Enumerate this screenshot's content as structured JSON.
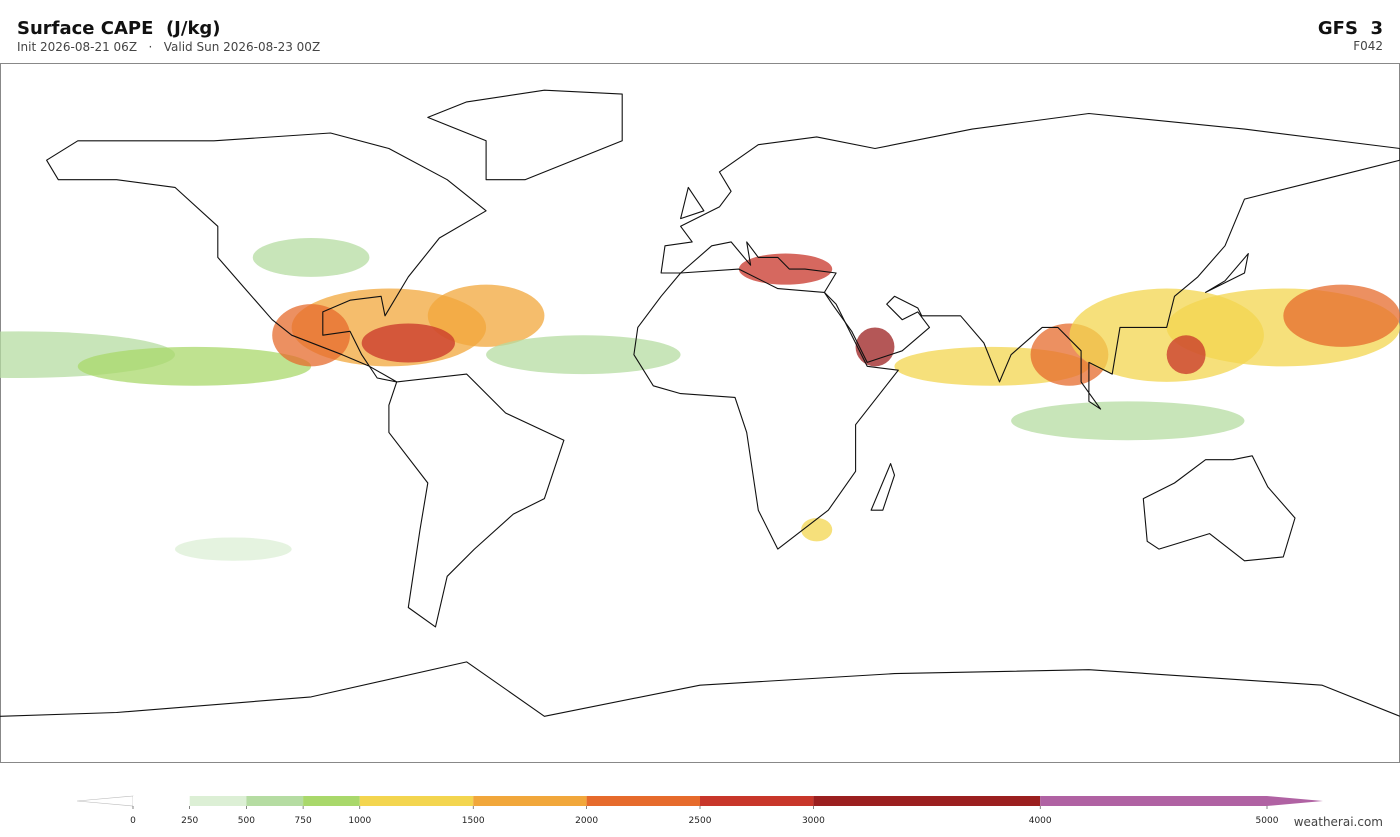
{
  "header": {
    "title": "Surface CAPE  (J/kg)",
    "subtitle": "Init 2026-08-21 06Z   ·   Valid Sun 2026-08-23 00Z",
    "model": "GFS  3",
    "forecast_hour": "F042"
  },
  "colorbar": {
    "levels": [
      0,
      250,
      500,
      750,
      1000,
      1500,
      2000,
      2500,
      3000,
      4000,
      5000
    ],
    "colors": [
      "#ffffff",
      "#dcefd5",
      "#b5dca2",
      "#a9d86b",
      "#f3d54f",
      "#f1a73b",
      "#e66b2c",
      "#c8362a",
      "#9b1f1f",
      "#b062a3"
    ],
    "over_color": "#b062a3",
    "under_color": "#ffffff",
    "lim": [
      0,
      5000
    ]
  },
  "footer": {
    "watermark": "weatherai.com"
  }
}
